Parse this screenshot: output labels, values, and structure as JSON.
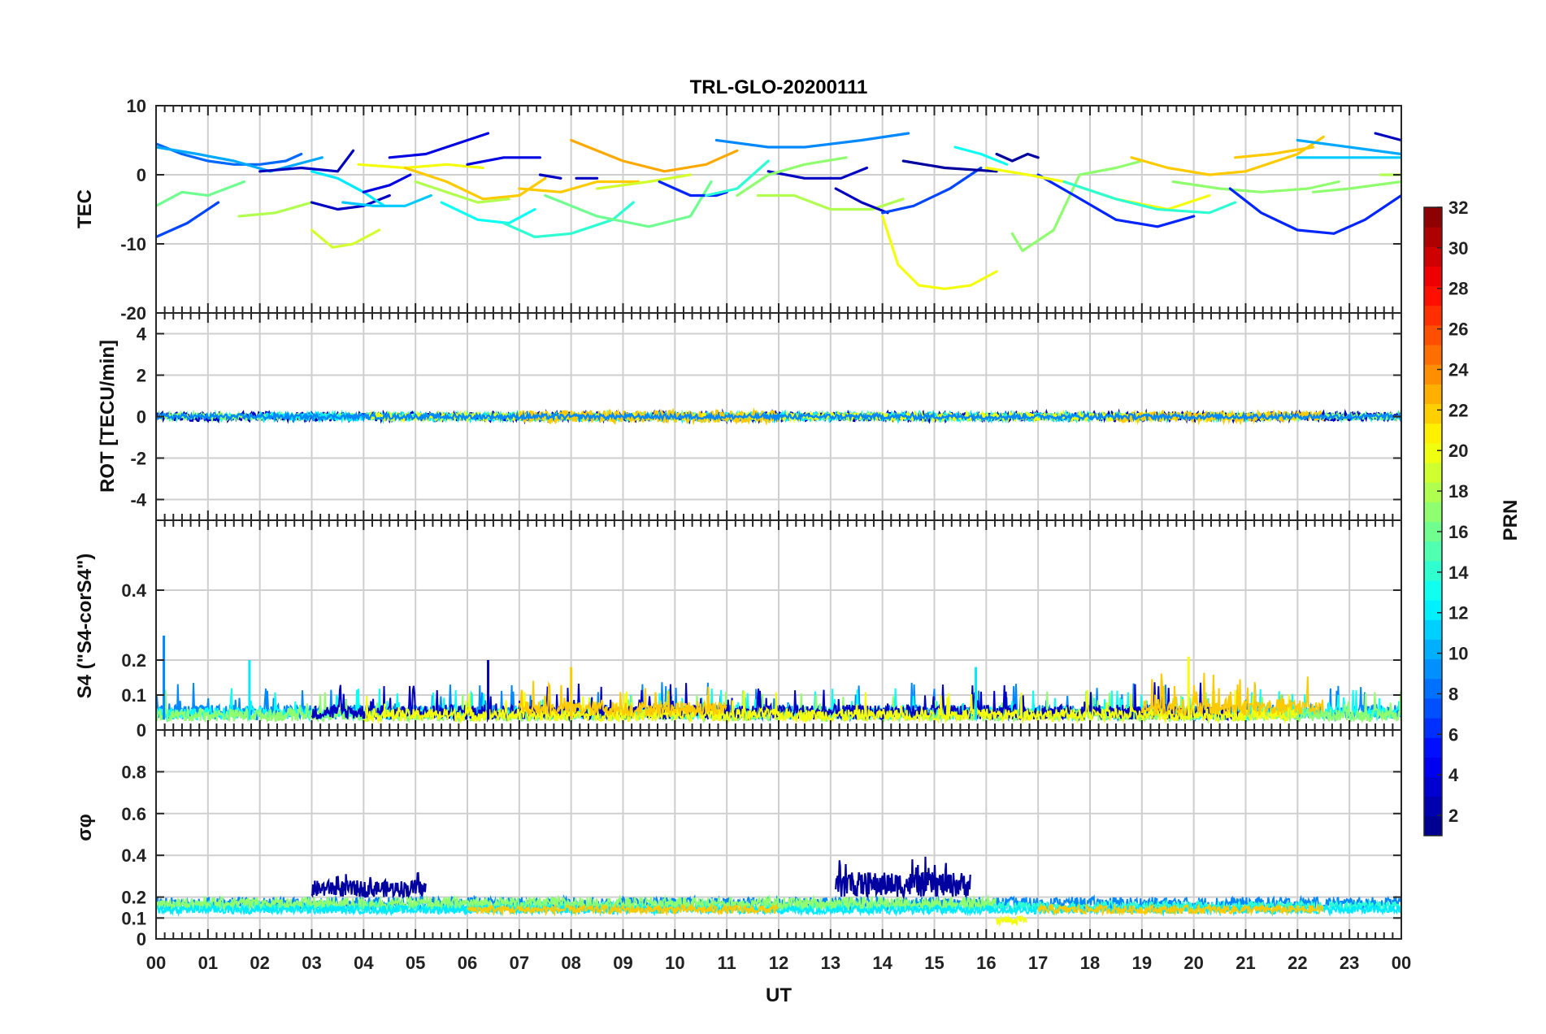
{
  "title": "TRL-GLO-20200111",
  "chart_data": {
    "type": "line",
    "title": "TRL-GLO-20200111",
    "xlabel": "UT",
    "xlim": [
      0,
      24
    ],
    "x_tick_labels": [
      "00",
      "01",
      "02",
      "03",
      "04",
      "05",
      "06",
      "07",
      "08",
      "09",
      "10",
      "11",
      "12",
      "13",
      "14",
      "15",
      "16",
      "17",
      "18",
      "19",
      "20",
      "21",
      "22",
      "23",
      "00"
    ],
    "colorbar": {
      "label": "PRN",
      "range": [
        1,
        32
      ],
      "tick_labels": [
        "2",
        "4",
        "6",
        "8",
        "10",
        "12",
        "14",
        "16",
        "18",
        "20",
        "22",
        "24",
        "26",
        "28",
        "30",
        "32"
      ],
      "tick_values": [
        2,
        4,
        6,
        8,
        10,
        12,
        14,
        16,
        18,
        20,
        22,
        24,
        26,
        28,
        30,
        32
      ]
    },
    "panels": [
      {
        "name": "tec",
        "ylabel": "TEC",
        "ylim": [
          -20,
          10
        ],
        "y_ticks": [
          -20,
          -10,
          0,
          10
        ],
        "y_tick_labels": [
          "-20",
          "-10",
          "0",
          "10"
        ],
        "series": [
          {
            "prn": 8,
            "x": [
              0,
              0.5,
              1,
              1.5,
              2,
              2.5,
              2.8
            ],
            "y": [
              4.5,
              3,
              2,
              1.5,
              1.5,
              2,
              3
            ]
          },
          {
            "prn": 7,
            "x": [
              0,
              0.6,
              1.2
            ],
            "y": [
              -9,
              -7,
              -4
            ]
          },
          {
            "prn": 16,
            "x": [
              0,
              0.5,
              1,
              1.7
            ],
            "y": [
              -4.5,
              -2.5,
              -3,
              -1
            ]
          },
          {
            "prn": 18,
            "x": [
              1.6,
              2.3,
              3
            ],
            "y": [
              -6,
              -5.5,
              -4
            ]
          },
          {
            "prn": 10,
            "x": [
              0,
              0.8,
              1.5,
              2.2,
              3.2
            ],
            "y": [
              4,
              3,
              2,
              0.5,
              2.5
            ]
          },
          {
            "prn": 3,
            "x": [
              2,
              2.8,
              3.5,
              3.8
            ],
            "y": [
              0.5,
              1,
              0.5,
              3.5
            ]
          },
          {
            "prn": 3,
            "x": [
              3,
              3.5,
              4,
              4.5
            ],
            "y": [
              -4,
              -5,
              -4.5,
              -3
            ]
          },
          {
            "prn": 19,
            "x": [
              3,
              3.4,
              3.8,
              4.3
            ],
            "y": [
              -8,
              -10.5,
              -10,
              -8
            ]
          },
          {
            "prn": 12,
            "x": [
              3,
              3.5,
              4,
              4.4
            ],
            "y": [
              0.5,
              -0.5,
              -2.5,
              -4.5
            ]
          },
          {
            "prn": 11,
            "x": [
              3.6,
              4.2,
              4.8,
              5.3
            ],
            "y": [
              -4,
              -4.5,
              -4.5,
              -3
            ]
          },
          {
            "prn": 4,
            "x": [
              4.5,
              5.2,
              6,
              6.4
            ],
            "y": [
              2.5,
              3,
              5,
              6
            ]
          },
          {
            "prn": 4,
            "x": [
              4,
              4.5,
              4.9
            ],
            "y": [
              -2.5,
              -1.5,
              0
            ]
          },
          {
            "prn": 20,
            "x": [
              3.9,
              4.8,
              5.6,
              6.3
            ],
            "y": [
              1.5,
              1,
              1.5,
              1
            ]
          },
          {
            "prn": 22,
            "x": [
              4.8,
              5.6,
              6.3,
              7,
              7.5
            ],
            "y": [
              1,
              -1,
              -3.5,
              -3,
              -0.5
            ]
          },
          {
            "prn": 18,
            "x": [
              5,
              5.6,
              6.2,
              6.8
            ],
            "y": [
              -1,
              -2.5,
              -4,
              -3.5
            ]
          },
          {
            "prn": 13,
            "x": [
              5.5,
              6.2,
              6.8,
              7.3
            ],
            "y": [
              -4,
              -6.5,
              -7,
              -5
            ]
          },
          {
            "prn": 4,
            "x": [
              6,
              6.7,
              7.4
            ],
            "y": [
              1.5,
              2.5,
              2.5
            ]
          },
          {
            "prn": 14,
            "x": [
              6.7,
              7.3,
              8,
              8.8,
              9.2
            ],
            "y": [
              -7,
              -9,
              -8.5,
              -6.5,
              -4
            ]
          },
          {
            "prn": 3,
            "x": [
              7.4,
              7.8
            ],
            "y": [
              0,
              -0.5
            ]
          },
          {
            "prn": 22,
            "x": [
              7,
              7.8,
              8.5,
              9.3
            ],
            "y": [
              -2,
              -2.5,
              -1,
              -1
            ]
          },
          {
            "prn": 3,
            "x": [
              8.1,
              8.5
            ],
            "y": [
              -0.5,
              -0.5
            ]
          },
          {
            "prn": 23,
            "x": [
              8,
              9,
              9.8,
              10.6,
              11.2
            ],
            "y": [
              5,
              2,
              0.5,
              1.5,
              3.5
            ]
          },
          {
            "prn": 16,
            "x": [
              7.5,
              8.5,
              9.5,
              10.3,
              10.7
            ],
            "y": [
              -3,
              -6,
              -7.5,
              -6,
              -1
            ]
          },
          {
            "prn": 19,
            "x": [
              8.5,
              9.5,
              10.3
            ],
            "y": [
              -2,
              -1,
              0
            ]
          },
          {
            "prn": 6,
            "x": [
              9.7,
              10.3,
              10.8,
              11
            ],
            "y": [
              -1,
              -3,
              -3,
              -2.5
            ]
          },
          {
            "prn": 14,
            "x": [
              10.6,
              11.2,
              11.8
            ],
            "y": [
              -3,
              -2,
              2
            ]
          },
          {
            "prn": 9,
            "x": [
              10.8,
              11.8,
              12.5,
              13.6,
              14.5
            ],
            "y": [
              5,
              4,
              4,
              5,
              6
            ]
          },
          {
            "prn": 3,
            "x": [
              11.8,
              12.5,
              13.2,
              13.7
            ],
            "y": [
              0.5,
              -0.5,
              -0.5,
              1
            ]
          },
          {
            "prn": 17,
            "x": [
              11.2,
              11.8,
              12.5,
              13.3
            ],
            "y": [
              -3,
              0,
              1.5,
              2.5
            ]
          },
          {
            "prn": 18,
            "x": [
              11.6,
              12.3,
              13,
              13.8,
              14.4
            ],
            "y": [
              -3,
              -3,
              -5,
              -5,
              -3.5
            ]
          },
          {
            "prn": 3,
            "x": [
              13.1,
              13.6,
              14.1
            ],
            "y": [
              -2,
              -4,
              -5.5
            ]
          },
          {
            "prn": 7,
            "x": [
              14,
              14.6,
              15.3,
              15.9
            ],
            "y": [
              -5.5,
              -4.5,
              -2,
              1
            ]
          },
          {
            "prn": 20,
            "x": [
              14,
              14.3,
              14.7,
              15.2,
              15.7,
              16.2
            ],
            "y": [
              -6,
              -13,
              -16,
              -16.5,
              -16,
              -14
            ]
          },
          {
            "prn": 2,
            "x": [
              14.4,
              15.2,
              16.2
            ],
            "y": [
              2,
              1,
              0.5
            ]
          },
          {
            "prn": 13,
            "x": [
              15.4,
              15.9,
              16.4
            ],
            "y": [
              4,
              3,
              1.5
            ]
          },
          {
            "prn": 2,
            "x": [
              16.2,
              16.5,
              16.8,
              17
            ],
            "y": [
              3,
              2,
              3,
              2.5
            ]
          },
          {
            "prn": 17,
            "x": [
              16.5,
              16.7,
              16.9,
              17.3,
              17.8,
              18.5,
              19
            ],
            "y": [
              -8.5,
              -11,
              -10,
              -8,
              0,
              1,
              2
            ]
          },
          {
            "prn": 6,
            "x": [
              17,
              17.7,
              18.5,
              19.3,
              20
            ],
            "y": [
              0,
              -3,
              -6.5,
              -7.5,
              -6
            ]
          },
          {
            "prn": 20,
            "x": [
              16,
              16.8,
              17.5,
              18.5,
              19.5,
              20.3
            ],
            "y": [
              1,
              0,
              -1,
              -3.5,
              -5,
              -3
            ]
          },
          {
            "prn": 14,
            "x": [
              17.5,
              18.5,
              19.3,
              20.3,
              20.8
            ],
            "y": [
              -1,
              -3.5,
              -5,
              -5.5,
              -4
            ]
          },
          {
            "prn": 22,
            "x": [
              18.8,
              19.5,
              20.3,
              21,
              22,
              22.5
            ],
            "y": [
              2.5,
              1,
              0,
              0.5,
              3,
              5.5
            ]
          },
          {
            "prn": 22,
            "x": [
              20.8,
              21.5,
              22.3
            ],
            "y": [
              2.5,
              3,
              4
            ]
          },
          {
            "prn": 17,
            "x": [
              19.6,
              20.5,
              21.3,
              22.2,
              22.8
            ],
            "y": [
              -1,
              -2,
              -2.5,
              -2,
              -1
            ]
          },
          {
            "prn": 6,
            "x": [
              20.7,
              21.3,
              22,
              22.7,
              23.3,
              24
            ],
            "y": [
              -2,
              -5.5,
              -8,
              -8.5,
              -6.5,
              -3
            ]
          },
          {
            "prn": 17,
            "x": [
              22.3,
              23,
              24
            ],
            "y": [
              -2.5,
              -2,
              -1
            ]
          },
          {
            "prn": 10,
            "x": [
              22,
              23,
              24
            ],
            "y": [
              5,
              4,
              3
            ]
          },
          {
            "prn": 11,
            "x": [
              22,
              23,
              24
            ],
            "y": [
              2.5,
              2.5,
              2.5
            ]
          },
          {
            "prn": 3,
            "x": [
              23.5,
              24
            ],
            "y": [
              6,
              5
            ]
          },
          {
            "prn": 18,
            "x": [
              23.6,
              24
            ],
            "y": [
              0,
              0
            ]
          }
        ]
      },
      {
        "name": "rot",
        "ylabel": "ROT [TECU/min]",
        "ylim": [
          -5,
          5
        ],
        "y_ticks": [
          -4,
          -2,
          0,
          2,
          4
        ],
        "y_tick_labels": [
          "-4",
          "-2",
          "0",
          "2",
          "4"
        ],
        "series_summary": "all PRNs fluctuate within about ±0.4 TECU/min around 0 for the whole day"
      },
      {
        "name": "s4",
        "ylabel": "S4 (\"S4-corS4\")",
        "ylim": [
          0,
          0.6
        ],
        "y_ticks": [
          0,
          0.1,
          0.2,
          0.4
        ],
        "y_tick_labels": [
          "0",
          "0.1",
          "0.2",
          "0.4"
        ],
        "series_summary": "background 0.02-0.06 with spikes up to ~0.27 at 00:10, ~0.20 at 01:45, 06:20 and 20:00",
        "peaks": [
          {
            "x": 0.15,
            "y": 0.27,
            "prn": 9
          },
          {
            "x": 1.8,
            "y": 0.2,
            "prn": 12
          },
          {
            "x": 6.4,
            "y": 0.2,
            "prn": 3
          },
          {
            "x": 8.0,
            "y": 0.18,
            "prn": 22
          },
          {
            "x": 15.8,
            "y": 0.18,
            "prn": 12
          },
          {
            "x": 19.9,
            "y": 0.21,
            "prn": 20
          }
        ]
      },
      {
        "name": "sigma_phi",
        "ylabel": "σφ",
        "ylim": [
          0,
          1
        ],
        "y_ticks": [
          0,
          0.1,
          0.2,
          0.4,
          0.6,
          0.8
        ],
        "y_tick_labels": [
          "0",
          "0.1",
          "0.2",
          "0.4",
          "0.6",
          "0.8"
        ],
        "series_summary": "baseline ~0.12-0.20; PRN 2 elevated to ~0.2-0.35 during 03:00-05:15 and 13:10-15:40",
        "elevated_intervals": [
          {
            "prn": 2,
            "x_start": 3.0,
            "x_end": 5.2,
            "y_min": 0.2,
            "y_max": 0.3
          },
          {
            "prn": 2,
            "x_start": 13.1,
            "x_end": 15.7,
            "y_min": 0.2,
            "y_max": 0.35
          }
        ]
      }
    ]
  }
}
